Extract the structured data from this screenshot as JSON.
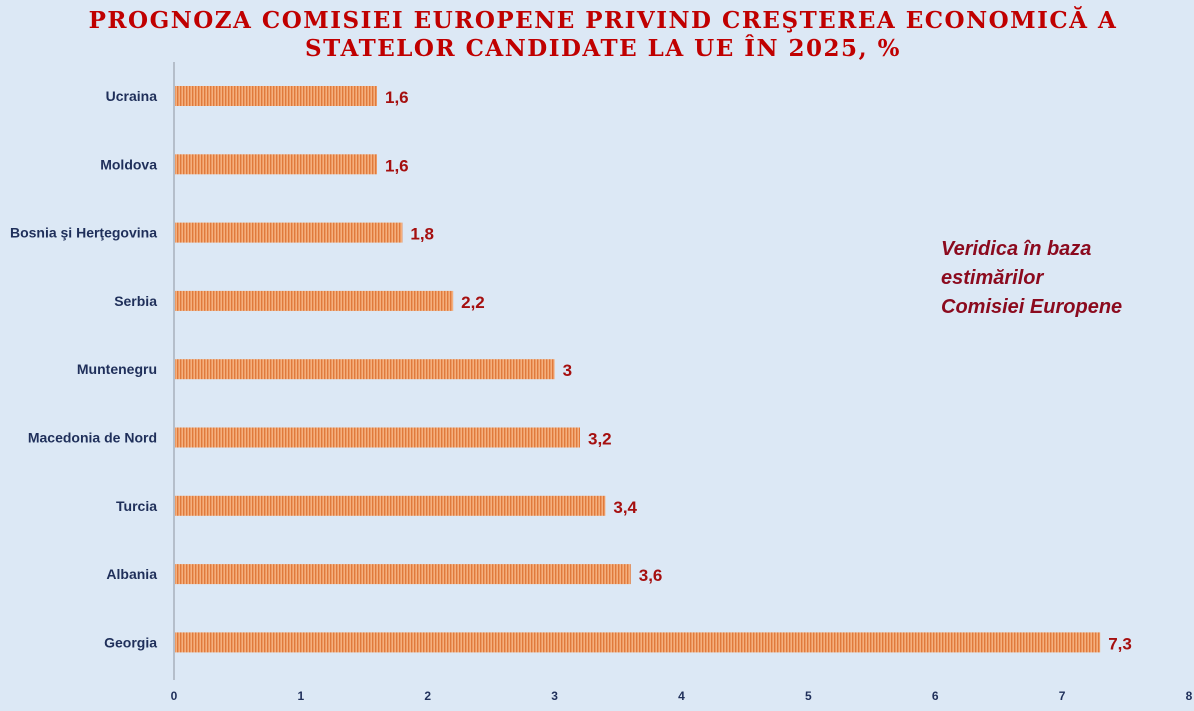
{
  "chart_data": {
    "type": "bar",
    "orientation": "horizontal",
    "title_lines": [
      "PROGNOZA COMISIEI EUROPENE PRIVIND CREŞTEREA ECONOMICĂ A",
      "STATELOR CANDIDATE LA UE ÎN 2025, %"
    ],
    "categories": [
      "Ucraina",
      "Moldova",
      "Bosnia şi Herţegovina",
      "Serbia",
      "Muntenegru",
      "Macedonia de Nord",
      "Turcia",
      "Albania",
      "Georgia"
    ],
    "values": [
      1.6,
      1.6,
      1.8,
      2.2,
      3,
      3.2,
      3.4,
      3.6,
      7.3
    ],
    "value_labels": [
      "1,6",
      "1,6",
      "1,8",
      "2,2",
      "3",
      "3,2",
      "3,4",
      "3,6",
      "7,3"
    ],
    "xlim": [
      0,
      8
    ],
    "x_ticks": [
      "0",
      "1",
      "2",
      "3",
      "4",
      "5",
      "6",
      "7",
      "8"
    ],
    "grid": false,
    "legend": "none",
    "annotation_lines": [
      "Veridica în baza",
      "estimărilor",
      "Comisiei Europene"
    ],
    "colors": {
      "bar": "#f0a070",
      "bar_stripe": "#e07a3c",
      "background": "#dce8f5",
      "title": "#c00000",
      "value_label": "#a50f0f",
      "category_label": "#1f2f5a",
      "annotation": "#8b0a1e"
    }
  }
}
